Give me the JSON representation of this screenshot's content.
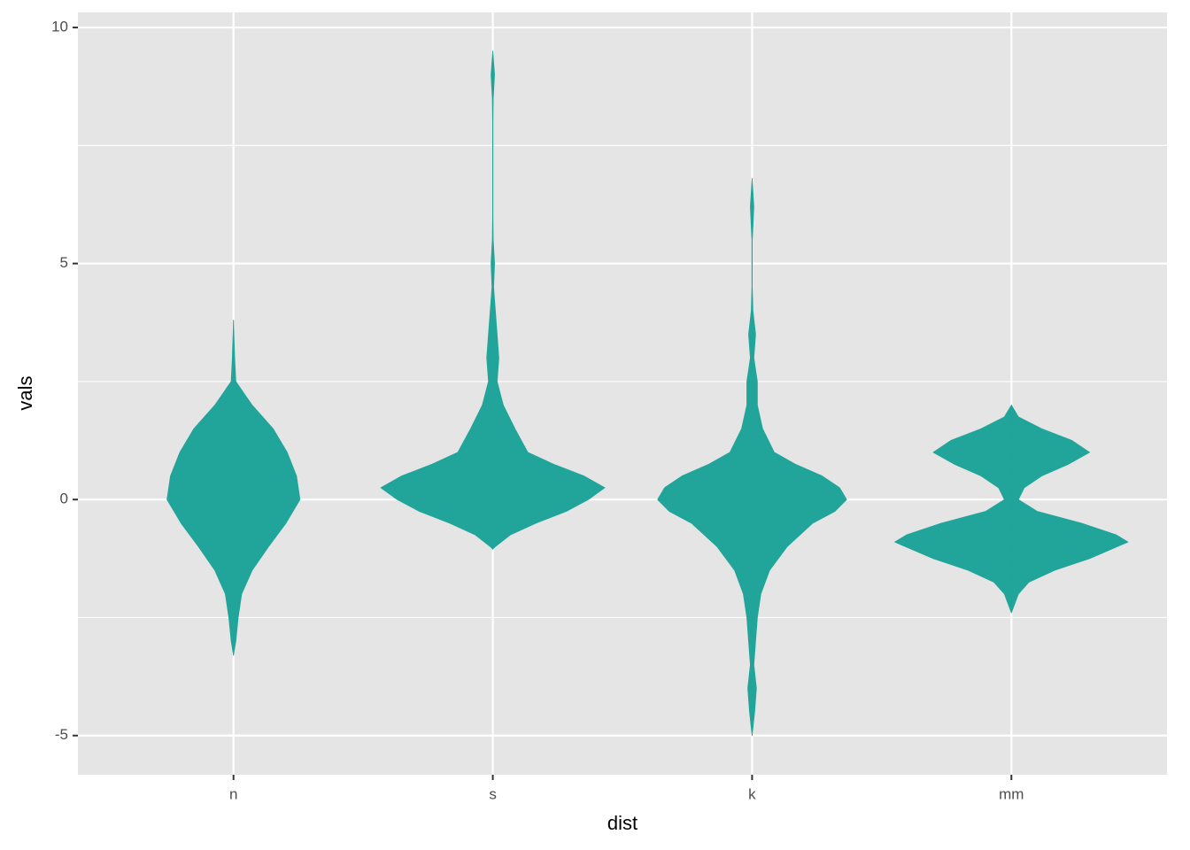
{
  "chart_data": {
    "type": "violin",
    "x_label": "dist",
    "y_label": "vals",
    "categories": [
      "n",
      "s",
      "k",
      "mm"
    ],
    "color": "#21a59a",
    "ylim": [
      -5.83,
      10.32
    ],
    "yticks": [
      -5,
      0,
      5,
      10
    ],
    "yminor": [
      -2.5,
      2.5,
      7.5
    ],
    "grid": true,
    "violins": [
      {
        "y": [
          3.8,
          3.0,
          2.5,
          2.0,
          1.5,
          1.0,
          0.5,
          0.0,
          -0.5,
          -1.0,
          -1.5,
          -2.0,
          -2.5,
          -3.0,
          -3.3
        ],
        "width": [
          0,
          0.01,
          0.02,
          0.16,
          0.34,
          0.46,
          0.54,
          0.57,
          0.45,
          0.3,
          0.16,
          0.07,
          0.04,
          0.02,
          0
        ]
      },
      {
        "y": [
          9.5,
          9.0,
          8.5,
          8.0,
          6.0,
          5.5,
          5.0,
          4.5,
          4.0,
          3.5,
          3.0,
          2.5,
          2.0,
          1.5,
          1.0,
          0.75,
          0.5,
          0.25,
          0.0,
          -0.25,
          -0.5,
          -0.75,
          -1.0,
          -1.05
        ],
        "width": [
          0,
          0.015,
          0.004,
          0.002,
          0.002,
          0.004,
          0.015,
          0.007,
          0.022,
          0.037,
          0.052,
          0.037,
          0.09,
          0.19,
          0.3,
          0.52,
          0.78,
          0.96,
          0.82,
          0.63,
          0.37,
          0.15,
          0.02,
          0
        ]
      },
      {
        "y": [
          6.8,
          6.2,
          5.5,
          4.5,
          4.0,
          3.5,
          3.0,
          2.5,
          2.0,
          1.5,
          1.0,
          0.75,
          0.5,
          0.25,
          0.0,
          -0.25,
          -0.5,
          -1.0,
          -1.5,
          -2.0,
          -2.5,
          -3.0,
          -3.5,
          -4.0,
          -4.5,
          -5.0
        ],
        "width": [
          0,
          0.015,
          0.002,
          0.002,
          0.007,
          0.03,
          0.015,
          0.045,
          0.045,
          0.09,
          0.19,
          0.37,
          0.6,
          0.75,
          0.81,
          0.71,
          0.52,
          0.3,
          0.15,
          0.075,
          0.045,
          0.03,
          0.015,
          0.037,
          0.022,
          0
        ]
      },
      {
        "y": [
          2.0,
          1.75,
          1.5,
          1.25,
          1.0,
          0.75,
          0.5,
          0.25,
          0.0,
          -0.25,
          -0.5,
          -0.75,
          -0.9,
          -1.25,
          -1.5,
          -1.75,
          -2.0,
          -2.4
        ],
        "width": [
          0,
          0.06,
          0.26,
          0.52,
          0.67,
          0.49,
          0.26,
          0.11,
          0.06,
          0.22,
          0.6,
          0.9,
          1,
          0.67,
          0.37,
          0.15,
          0.06,
          0
        ]
      }
    ]
  }
}
